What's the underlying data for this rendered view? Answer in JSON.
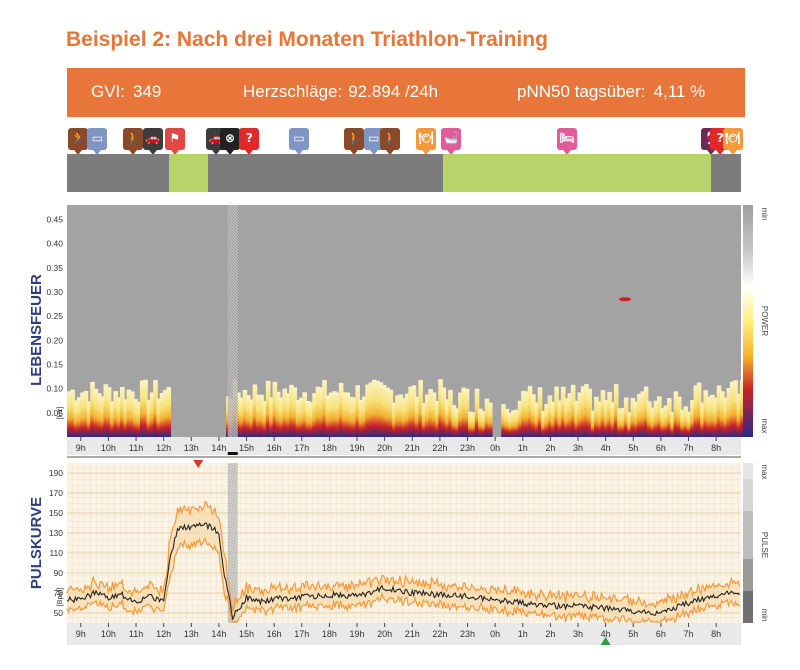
{
  "title": "Beispiel 2: Nach drei Monaten Triathlon-Training",
  "stats": {
    "gvi_label": "GVI:",
    "gvi_value": "349",
    "beats_label": "Herzschläge:",
    "beats_value": "92.894 /24h",
    "pnn_label": "pNN50 tagsüber:",
    "pnn_value": "4,11 %"
  },
  "colors": {
    "accent": "#e8763a",
    "activity_gray": "#7c7c7c",
    "activity_green": "#b6d46a",
    "spectro_bg": "#a3a3a3",
    "pulse_line": "#222222",
    "pulse_band": "#f39a3c"
  },
  "activity": {
    "segments": [
      {
        "type": "gray",
        "from": 8.5,
        "to": 12.2
      },
      {
        "type": "green",
        "from": 12.2,
        "to": 13.6
      },
      {
        "type": "gray",
        "from": 13.6,
        "to": 22.1
      },
      {
        "type": "green",
        "from": 22.1,
        "to": 31.8
      },
      {
        "type": "gray",
        "from": 31.8,
        "to": 32.9
      }
    ],
    "icons": [
      {
        "name": "running-icon",
        "at": 8.9,
        "color": "#8a4a2a",
        "glyph": "🏃"
      },
      {
        "name": "monitor-icon",
        "at": 9.6,
        "color": "#7f95c4",
        "glyph": "▭"
      },
      {
        "name": "hiking-icon",
        "at": 10.9,
        "color": "#8a4a2a",
        "glyph": "🚶"
      },
      {
        "name": "car-icon",
        "at": 11.6,
        "color": "#3c3c3c",
        "glyph": "🚗"
      },
      {
        "name": "sport-icon",
        "at": 12.4,
        "color": "#e04848",
        "glyph": "⚑"
      },
      {
        "name": "car-icon",
        "at": 13.9,
        "color": "#3c3c3c",
        "glyph": "🚗"
      },
      {
        "name": "cancel-icon",
        "at": 14.4,
        "color": "#222222",
        "glyph": "⊗"
      },
      {
        "name": "question-icon",
        "at": 15.1,
        "color": "#e02a2a",
        "glyph": "?"
      },
      {
        "name": "monitor-icon",
        "at": 16.9,
        "color": "#7f95c4",
        "glyph": "▭"
      },
      {
        "name": "hiking-icon",
        "at": 18.9,
        "color": "#8a4a2a",
        "glyph": "🚶"
      },
      {
        "name": "monitor-icon",
        "at": 19.6,
        "color": "#7f95c4",
        "glyph": "▭"
      },
      {
        "name": "hiking-icon",
        "at": 20.2,
        "color": "#8a4a2a",
        "glyph": "🚶"
      },
      {
        "name": "meal-icon",
        "at": 21.5,
        "color": "#f39a3c",
        "glyph": "🍽"
      },
      {
        "name": "bath-icon",
        "at": 22.4,
        "color": "#e05c98",
        "glyph": "🛁"
      },
      {
        "name": "bed-icon",
        "at": 26.6,
        "color": "#e05c98",
        "glyph": "🛏"
      },
      {
        "name": "wine-icon",
        "at": 31.8,
        "color": "#6b2c52",
        "glyph": "🍷"
      },
      {
        "name": "question-icon",
        "at": 32.15,
        "color": "#e02a2a",
        "glyph": "?"
      },
      {
        "name": "meal-icon",
        "at": 32.6,
        "color": "#f39a3c",
        "glyph": "🍽"
      }
    ]
  },
  "chart_data": [
    {
      "type": "heatmap",
      "title": "",
      "ylabel": "LEBENSFEUER",
      "yunit": "[Hz]",
      "yticks": [
        "0.45",
        "0.40",
        "0.35",
        "0.30",
        "0.25",
        "0.20",
        "0.15",
        "0.10",
        "0.05"
      ],
      "ylim": [
        0,
        0.48
      ],
      "colorbar": {
        "label": "POWER",
        "top": "min",
        "bottom": "max"
      },
      "x_ticks": [
        "9h",
        "10h",
        "11h",
        "12h",
        "13h",
        "14h",
        "15h",
        "16h",
        "17h",
        "18h",
        "19h",
        "20h",
        "21h",
        "22h",
        "23h",
        "0h",
        "1h",
        "2h",
        "3h",
        "4h",
        "5h",
        "6h",
        "7h",
        "8h"
      ],
      "x_range": [
        8.5,
        32.9
      ],
      "marker_hour": 14.5
    },
    {
      "type": "line",
      "title": "",
      "ylabel": "PULSKURVE",
      "yunit": "[BpM]",
      "yticks": [
        "190",
        "170",
        "150",
        "130",
        "110",
        "90",
        "70",
        "50"
      ],
      "ylim": [
        40,
        200
      ],
      "colorbar": {
        "label": "PULSE",
        "top": "max",
        "bottom": "min"
      },
      "x_ticks": [
        "9h",
        "10h",
        "11h",
        "12h",
        "13h",
        "14h",
        "15h",
        "16h",
        "17h",
        "18h",
        "19h",
        "20h",
        "21h",
        "22h",
        "23h",
        "0h",
        "1h",
        "2h",
        "3h",
        "4h",
        "5h",
        "6h",
        "7h",
        "8h"
      ],
      "x_range": [
        8.5,
        32.9
      ],
      "marker_hour": 13.25,
      "series": [
        {
          "x": [
            8.5,
            9,
            9.5,
            10,
            10.5,
            11,
            11.5,
            12,
            12.2,
            12.5,
            13,
            13.5,
            14,
            14.2,
            14.5,
            15,
            15.5,
            16,
            17,
            18,
            19,
            20,
            21,
            22,
            23,
            24,
            25,
            26,
            27,
            28,
            29,
            30,
            31,
            32,
            32.9
          ],
          "values": [
            63,
            64,
            70,
            65,
            68,
            62,
            66,
            63,
            100,
            135,
            136,
            139,
            130,
            88,
            46,
            66,
            61,
            64,
            66,
            68,
            67,
            75,
            70,
            68,
            67,
            63,
            60,
            57,
            57,
            55,
            52,
            50,
            60,
            68,
            70
          ]
        }
      ]
    }
  ]
}
